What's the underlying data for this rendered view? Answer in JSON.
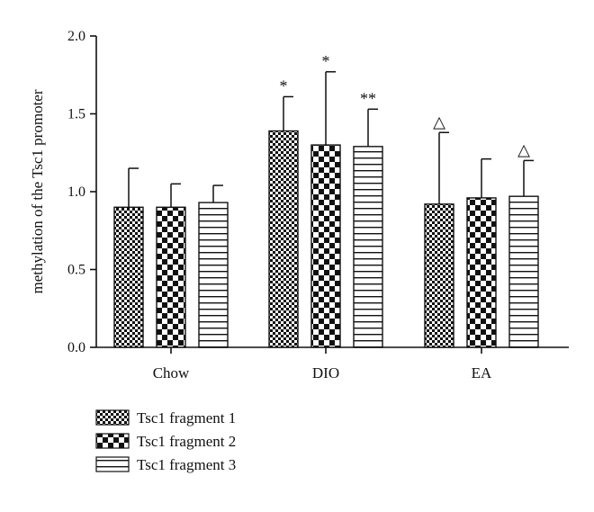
{
  "chart_data": {
    "type": "bar",
    "title": "",
    "xlabel": "",
    "ylabel": "methylation of the Tsc1 promoter",
    "ylim": [
      0,
      2.0
    ],
    "yticks": [
      0.0,
      0.5,
      1.0,
      1.5,
      2.0
    ],
    "ytick_labels": [
      "0.0",
      "0.5",
      "1.0",
      "1.5",
      "2.0"
    ],
    "categories": [
      "Chow",
      "DIO",
      "EA"
    ],
    "series": [
      {
        "name": "Tsc1 fragment 1",
        "pattern": "fine-checker",
        "values": [
          0.9,
          1.39,
          0.92
        ],
        "errors": [
          0.25,
          0.22,
          0.46
        ],
        "annotations": [
          "",
          "*",
          "△"
        ]
      },
      {
        "name": "Tsc1 fragment 2",
        "pattern": "coarse-checker",
        "values": [
          0.9,
          1.3,
          0.96
        ],
        "errors": [
          0.15,
          0.47,
          0.25
        ],
        "annotations": [
          "",
          "*",
          ""
        ]
      },
      {
        "name": "Tsc1 fragment 3",
        "pattern": "horizontal-lines",
        "values": [
          0.93,
          1.29,
          0.97
        ],
        "errors": [
          0.11,
          0.24,
          0.23
        ],
        "annotations": [
          "",
          "**",
          "△"
        ]
      }
    ],
    "legend_position": "bottom-left",
    "grid": false,
    "colors": {
      "ink": "#111111",
      "background": "#ffffff"
    }
  }
}
